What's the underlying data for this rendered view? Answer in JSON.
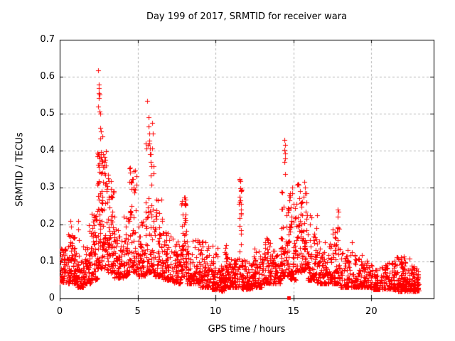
{
  "chart_data": {
    "type": "scatter",
    "title": "Day 199 of 2017, SRMTID for receiver wara",
    "xlabel": "GPS time / hours",
    "ylabel": "SRMTID / TECUs",
    "xlim": [
      0,
      24
    ],
    "ylim": [
      0,
      0.7
    ],
    "xticks": {
      "values": [
        0,
        5,
        10,
        15,
        20
      ],
      "labels": [
        "0",
        "5",
        "10",
        "15",
        "20"
      ]
    },
    "yticks": {
      "values": [
        0,
        0.1,
        0.2,
        0.3,
        0.4,
        0.5,
        0.6,
        0.7
      ],
      "labels": [
        "0",
        "0.1",
        "0.2",
        "0.3",
        "0.4",
        "0.5",
        "0.6",
        "0.7"
      ]
    },
    "grid": true,
    "legend": "none",
    "marker": {
      "shape": "plus",
      "color": "#ff0000",
      "size": 7
    },
    "special_marker": {
      "x": 14.7,
      "y": 0.002,
      "shape": "filled-square",
      "color": "#ff0000",
      "size": 5
    },
    "colors": {
      "grid": "#b3b3b3",
      "axis": "#000000",
      "background": "#ffffff",
      "points": "#ff0000"
    },
    "seed": 7,
    "point_bands": [
      [
        0.0,
        0.5,
        0.045,
        0.135,
        60,
        2.0
      ],
      [
        0.5,
        1.0,
        0.04,
        0.175,
        70,
        2.2
      ],
      [
        1.0,
        1.5,
        0.03,
        0.125,
        60,
        2.0
      ],
      [
        1.5,
        2.0,
        0.04,
        0.145,
        65,
        2.0
      ],
      [
        2.0,
        2.4,
        0.05,
        0.24,
        55,
        2.0
      ],
      [
        2.4,
        3.0,
        0.08,
        0.4,
        110,
        1.7
      ],
      [
        3.0,
        3.5,
        0.07,
        0.33,
        80,
        2.0
      ],
      [
        3.5,
        4.1,
        0.055,
        0.19,
        70,
        2.0
      ],
      [
        4.1,
        4.45,
        0.06,
        0.24,
        45,
        2.0
      ],
      [
        4.45,
        5.0,
        0.07,
        0.355,
        70,
        1.9
      ],
      [
        5.0,
        5.5,
        0.06,
        0.21,
        60,
        2.0
      ],
      [
        5.5,
        6.1,
        0.07,
        0.42,
        80,
        2.1
      ],
      [
        6.1,
        6.6,
        0.06,
        0.27,
        60,
        2.2
      ],
      [
        6.6,
        7.3,
        0.05,
        0.18,
        75,
        2.0
      ],
      [
        7.3,
        7.8,
        0.04,
        0.155,
        60,
        2.0
      ],
      [
        7.8,
        8.15,
        0.06,
        0.275,
        55,
        2.0
      ],
      [
        8.15,
        9.0,
        0.04,
        0.17,
        90,
        2.2
      ],
      [
        9.0,
        9.7,
        0.03,
        0.155,
        80,
        2.2
      ],
      [
        9.7,
        10.2,
        0.025,
        0.15,
        65,
        2.4
      ],
      [
        10.2,
        10.55,
        0.02,
        0.09,
        50,
        1.8
      ],
      [
        10.55,
        10.8,
        0.03,
        0.145,
        40,
        2.0
      ],
      [
        10.8,
        11.5,
        0.03,
        0.115,
        85,
        2.0
      ],
      [
        11.5,
        11.66,
        0.06,
        0.325,
        25,
        1.1
      ],
      [
        11.66,
        12.4,
        0.025,
        0.105,
        85,
        1.9
      ],
      [
        12.4,
        13.0,
        0.03,
        0.135,
        70,
        2.0
      ],
      [
        13.0,
        13.5,
        0.04,
        0.165,
        60,
        2.0
      ],
      [
        13.5,
        14.2,
        0.04,
        0.15,
        75,
        2.0
      ],
      [
        14.2,
        14.8,
        0.06,
        0.305,
        80,
        1.7
      ],
      [
        14.8,
        15.15,
        0.05,
        0.26,
        50,
        2.0
      ],
      [
        15.15,
        15.9,
        0.07,
        0.315,
        90,
        1.6
      ],
      [
        15.9,
        16.5,
        0.05,
        0.23,
        70,
        2.2
      ],
      [
        16.5,
        17.5,
        0.04,
        0.155,
        95,
        2.2
      ],
      [
        17.5,
        18.0,
        0.04,
        0.2,
        55,
        2.3
      ],
      [
        18.0,
        19.0,
        0.03,
        0.14,
        100,
        2.3
      ],
      [
        19.0,
        20.0,
        0.03,
        0.12,
        100,
        2.2
      ],
      [
        20.0,
        21.5,
        0.025,
        0.1,
        140,
        2.0
      ],
      [
        21.5,
        22.5,
        0.02,
        0.115,
        130,
        2.2
      ],
      [
        22.5,
        23.05,
        0.02,
        0.09,
        80,
        1.9
      ]
    ],
    "outlier_points": [
      [
        0.55,
        0.173
      ],
      [
        0.68,
        0.21
      ],
      [
        0.72,
        0.195
      ],
      [
        1.18,
        0.21
      ],
      [
        1.2,
        0.186
      ],
      [
        1.22,
        0.158
      ],
      [
        1.88,
        0.198
      ],
      [
        1.9,
        0.182
      ],
      [
        2.48,
        0.617
      ],
      [
        2.5,
        0.578
      ],
      [
        2.53,
        0.57
      ],
      [
        2.52,
        0.556
      ],
      [
        2.55,
        0.551
      ],
      [
        2.5,
        0.543
      ],
      [
        2.47,
        0.519
      ],
      [
        2.54,
        0.506
      ],
      [
        2.62,
        0.5
      ],
      [
        2.6,
        0.462
      ],
      [
        2.65,
        0.452
      ],
      [
        2.72,
        0.438
      ],
      [
        2.58,
        0.433
      ],
      [
        2.42,
        0.394
      ],
      [
        2.46,
        0.39
      ],
      [
        2.52,
        0.387
      ],
      [
        2.56,
        0.378
      ],
      [
        2.64,
        0.382
      ],
      [
        2.7,
        0.362
      ],
      [
        2.78,
        0.355
      ],
      [
        3.08,
        0.335
      ],
      [
        3.16,
        0.318
      ],
      [
        4.5,
        0.354
      ],
      [
        4.53,
        0.34
      ],
      [
        5.62,
        0.535
      ],
      [
        5.7,
        0.49
      ],
      [
        5.72,
        0.465
      ],
      [
        5.74,
        0.447
      ],
      [
        5.76,
        0.427
      ],
      [
        5.79,
        0.405
      ],
      [
        5.82,
        0.39
      ],
      [
        5.86,
        0.37
      ],
      [
        5.9,
        0.357
      ],
      [
        5.95,
        0.475
      ],
      [
        5.97,
        0.446
      ],
      [
        7.97,
        0.273
      ],
      [
        8.01,
        0.258
      ],
      [
        10.68,
        0.144
      ],
      [
        11.55,
        0.323
      ],
      [
        11.57,
        0.318
      ],
      [
        14.43,
        0.428
      ],
      [
        14.45,
        0.415
      ],
      [
        14.44,
        0.401
      ],
      [
        14.46,
        0.392
      ],
      [
        14.45,
        0.378
      ],
      [
        14.44,
        0.369
      ],
      [
        14.46,
        0.337
      ],
      [
        14.9,
        0.3
      ],
      [
        14.92,
        0.285
      ],
      [
        15.7,
        0.315
      ],
      [
        15.72,
        0.3
      ],
      [
        17.84,
        0.24
      ],
      [
        17.88,
        0.234
      ],
      [
        17.86,
        0.222
      ],
      [
        17.85,
        0.192
      ],
      [
        18.77,
        0.152
      ]
    ]
  }
}
